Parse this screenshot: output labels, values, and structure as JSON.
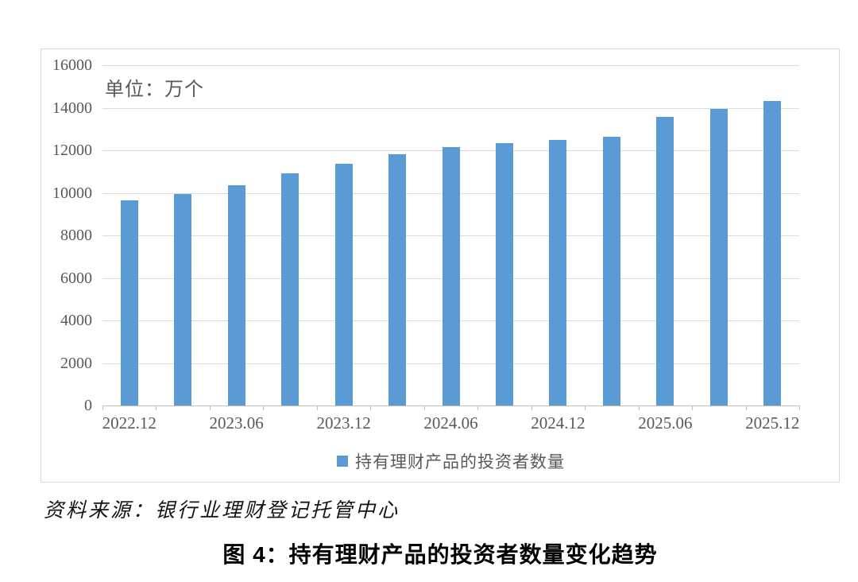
{
  "page": {
    "unit_label": "单位：万个",
    "legend_label": "持有理财产品的投资者数量",
    "source_note": "资料来源：银行业理财登记托管中心",
    "caption": "图 4：持有理财产品的投资者数量变化趋势"
  },
  "colors": {
    "bar": "#5B9BD5",
    "axis_text": "#595959",
    "gridline": "#DCDCDC",
    "axis_line": "#BFBFBF",
    "frame_border": "#D9D9D9"
  },
  "chart_data": {
    "type": "bar",
    "title": "持有理财产品的投资者数量变化趋势",
    "unit": "万个",
    "series_name": "持有理财产品的投资者数量",
    "categories": [
      "2022.12",
      "2023.03",
      "2023.06",
      "2023.09",
      "2023.12",
      "2024.03",
      "2024.06",
      "2024.09",
      "2024.12",
      "2025.03",
      "2025.06",
      "2025.09",
      "2025.12"
    ],
    "values": [
      9660,
      9930,
      10340,
      10920,
      11370,
      11820,
      12150,
      12350,
      12500,
      12620,
      13570,
      13930,
      14330
    ],
    "x_label_every": 2,
    "y_ticks": [
      0,
      2000,
      4000,
      6000,
      8000,
      10000,
      12000,
      14000,
      16000
    ],
    "ylim": [
      0,
      16000
    ],
    "grid": true,
    "legend_position": "bottom",
    "bar_color": "#5B9BD5"
  }
}
